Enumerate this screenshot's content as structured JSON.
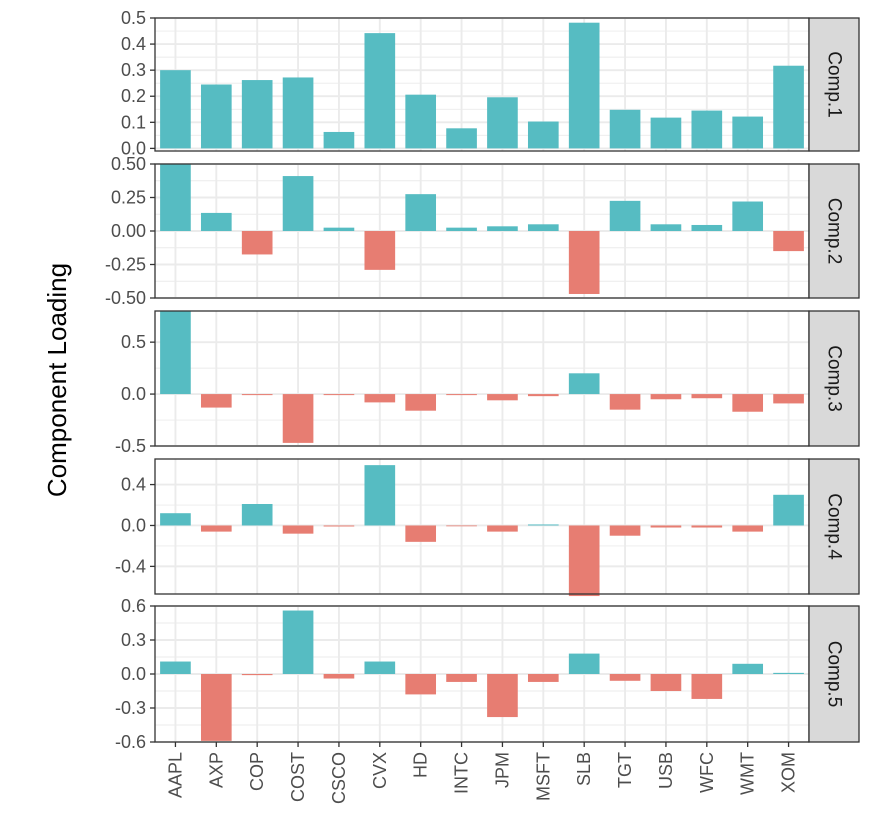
{
  "chart_data": {
    "type": "bar",
    "layout": "faceted-rows",
    "ylabel": "Component Loading",
    "xlabel": "",
    "categories": [
      "AAPL",
      "AXP",
      "COP",
      "COST",
      "CSCO",
      "CVX",
      "HD",
      "INTC",
      "JPM",
      "MSFT",
      "SLB",
      "TGT",
      "USB",
      "WFC",
      "WMT",
      "XOM"
    ],
    "colors": {
      "positive": "#56BCC2",
      "negative": "#E77D72",
      "strip_fill": "#D9D9D9",
      "grid": "#EBEBEB",
      "border": "#333333"
    },
    "grid": true,
    "legend": "none",
    "panels": [
      {
        "name": "Comp.1",
        "ylim": [
          -0.01,
          0.5
        ],
        "ticks": [
          0.0,
          0.1,
          0.2,
          0.3,
          0.4,
          0.5
        ],
        "tick_labels": [
          "0.0",
          "0.1",
          "0.2",
          "0.3",
          "0.4",
          "0.5"
        ],
        "values": [
          0.3,
          0.245,
          0.262,
          0.272,
          0.063,
          0.442,
          0.206,
          0.077,
          0.196,
          0.103,
          0.482,
          0.148,
          0.118,
          0.145,
          0.122,
          0.317
        ]
      },
      {
        "name": "Comp.2",
        "ylim": [
          -0.5,
          0.5
        ],
        "ticks": [
          -0.5,
          -0.25,
          0.0,
          0.25,
          0.5
        ],
        "tick_labels": [
          "-0.50",
          "-0.25",
          "0.00",
          "0.25",
          "0.50"
        ],
        "values": [
          0.5,
          0.135,
          -0.175,
          0.41,
          0.025,
          -0.29,
          0.275,
          0.025,
          0.035,
          0.05,
          -0.47,
          0.225,
          0.05,
          0.045,
          0.22,
          -0.15
        ]
      },
      {
        "name": "Comp.3",
        "ylim": [
          -0.5,
          0.8
        ],
        "ticks": [
          -0.5,
          0.0,
          0.5
        ],
        "tick_labels": [
          "-0.5",
          "0.0",
          "0.5"
        ],
        "values": [
          0.8,
          -0.13,
          -0.01,
          -0.47,
          -0.01,
          -0.08,
          -0.16,
          -0.01,
          -0.06,
          -0.02,
          0.2,
          -0.15,
          -0.05,
          -0.04,
          -0.17,
          -0.09
        ]
      },
      {
        "name": "Comp.4",
        "ylim": [
          -0.67,
          0.65
        ],
        "ticks": [
          -0.4,
          0.0,
          0.4
        ],
        "tick_labels": [
          "-0.4",
          "0.0",
          "0.4"
        ],
        "values": [
          0.12,
          -0.06,
          0.21,
          -0.08,
          -0.01,
          0.59,
          -0.16,
          -0.005,
          -0.06,
          0.01,
          -0.69,
          -0.1,
          -0.02,
          -0.02,
          -0.06,
          0.3
        ]
      },
      {
        "name": "Comp.5",
        "ylim": [
          -0.6,
          0.6
        ],
        "ticks": [
          -0.6,
          -0.3,
          0.0,
          0.3,
          0.6
        ],
        "tick_labels": [
          "-0.6",
          "-0.3",
          "0.0",
          "0.3",
          "0.6"
        ],
        "values": [
          0.11,
          -0.59,
          -0.01,
          0.56,
          -0.04,
          0.11,
          -0.18,
          -0.07,
          -0.38,
          -0.07,
          0.18,
          -0.06,
          -0.15,
          -0.22,
          0.09,
          0.01
        ]
      }
    ]
  }
}
